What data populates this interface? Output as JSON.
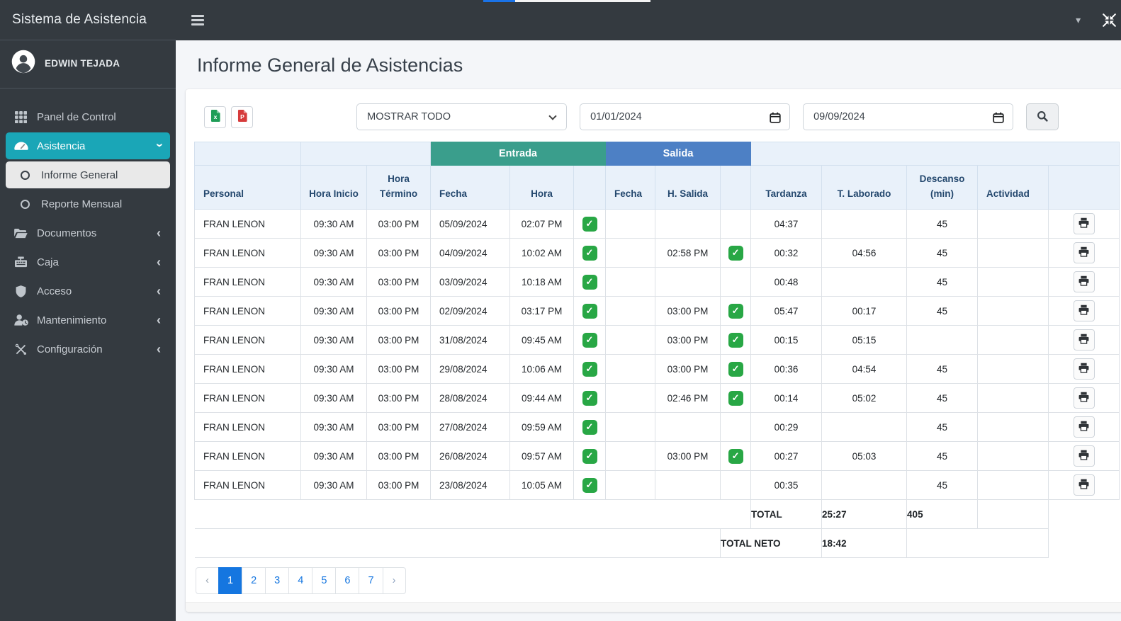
{
  "brand": "Sistema de Asistencia",
  "user": {
    "name": "EDWIN TEJADA"
  },
  "sidebar": {
    "items": [
      {
        "label": "Panel de Control",
        "icon": "grid-icon"
      },
      {
        "label": "Asistencia",
        "icon": "tachometer-icon",
        "state": "active",
        "chevron": "down"
      },
      {
        "label": "Informe General",
        "icon": "circle-icon",
        "state": "selected",
        "submenu": true
      },
      {
        "label": "Reporte Mensual",
        "icon": "circle-icon",
        "submenu": true
      },
      {
        "label": "Documentos",
        "icon": "folder-open-icon",
        "chevron": "left"
      },
      {
        "label": "Caja",
        "icon": "cash-register-icon",
        "chevron": "left"
      },
      {
        "label": "Acceso",
        "icon": "shield-icon",
        "chevron": "left"
      },
      {
        "label": "Mantenimiento",
        "icon": "user-clock-icon",
        "chevron": "left"
      },
      {
        "label": "Configuración",
        "icon": "tools-icon",
        "chevron": "left"
      }
    ]
  },
  "topbar": {
    "icons": [
      "hamburger-icon",
      "caret-down-icon",
      "compress-icon"
    ]
  },
  "page": {
    "title": "Informe General de Asistencias"
  },
  "filters": {
    "export_icons": [
      "file-excel-icon",
      "file-pdf-icon"
    ],
    "status_select": {
      "value": "MOSTRAR TODO"
    },
    "date_from": "01/01/2024",
    "date_to": "09/09/2024",
    "search_icon": "search-icon"
  },
  "table": {
    "groups": {
      "entrada": "Entrada",
      "salida": "Salida"
    },
    "columns": [
      "Personal",
      "Hora Inicio",
      "Hora Término",
      "Fecha",
      "Hora",
      "Fecha",
      "H. Salida",
      "Tardanza",
      "T. Laborado",
      "Descanso (min)",
      "Actividad"
    ],
    "rows": [
      {
        "personal": "FRAN LENON",
        "hora_inicio": "09:30 AM",
        "hora_termino": "03:00 PM",
        "fecha_entrada": "05/09/2024",
        "hora_entrada": "02:07 PM",
        "entrada_check": true,
        "fecha_salida": "",
        "hora_salida": "",
        "salida_check": false,
        "tardanza": "04:37",
        "t_laborado": "",
        "descanso": "45",
        "actividad": ""
      },
      {
        "personal": "FRAN LENON",
        "hora_inicio": "09:30 AM",
        "hora_termino": "03:00 PM",
        "fecha_entrada": "04/09/2024",
        "hora_entrada": "10:02 AM",
        "entrada_check": true,
        "fecha_salida": "",
        "hora_salida": "02:58 PM",
        "salida_check": true,
        "tardanza": "00:32",
        "t_laborado": "04:56",
        "descanso": "45",
        "actividad": ""
      },
      {
        "personal": "FRAN LENON",
        "hora_inicio": "09:30 AM",
        "hora_termino": "03:00 PM",
        "fecha_entrada": "03/09/2024",
        "hora_entrada": "10:18 AM",
        "entrada_check": true,
        "fecha_salida": "",
        "hora_salida": "",
        "salida_check": false,
        "tardanza": "00:48",
        "t_laborado": "",
        "descanso": "45",
        "actividad": ""
      },
      {
        "personal": "FRAN LENON",
        "hora_inicio": "09:30 AM",
        "hora_termino": "03:00 PM",
        "fecha_entrada": "02/09/2024",
        "hora_entrada": "03:17 PM",
        "entrada_check": true,
        "fecha_salida": "",
        "hora_salida": "03:00 PM",
        "salida_check": true,
        "tardanza": "05:47",
        "t_laborado": "00:17",
        "descanso": "45",
        "actividad": ""
      },
      {
        "personal": "FRAN LENON",
        "hora_inicio": "09:30 AM",
        "hora_termino": "03:00 PM",
        "fecha_entrada": "31/08/2024",
        "hora_entrada": "09:45 AM",
        "entrada_check": true,
        "fecha_salida": "",
        "hora_salida": "03:00 PM",
        "salida_check": true,
        "tardanza": "00:15",
        "t_laborado": "05:15",
        "descanso": "",
        "actividad": ""
      },
      {
        "personal": "FRAN LENON",
        "hora_inicio": "09:30 AM",
        "hora_termino": "03:00 PM",
        "fecha_entrada": "29/08/2024",
        "hora_entrada": "10:06 AM",
        "entrada_check": true,
        "fecha_salida": "",
        "hora_salida": "03:00 PM",
        "salida_check": true,
        "tardanza": "00:36",
        "t_laborado": "04:54",
        "descanso": "45",
        "actividad": ""
      },
      {
        "personal": "FRAN LENON",
        "hora_inicio": "09:30 AM",
        "hora_termino": "03:00 PM",
        "fecha_entrada": "28/08/2024",
        "hora_entrada": "09:44 AM",
        "entrada_check": true,
        "fecha_salida": "",
        "hora_salida": "02:46 PM",
        "salida_check": true,
        "tardanza": "00:14",
        "t_laborado": "05:02",
        "descanso": "45",
        "actividad": ""
      },
      {
        "personal": "FRAN LENON",
        "hora_inicio": "09:30 AM",
        "hora_termino": "03:00 PM",
        "fecha_entrada": "27/08/2024",
        "hora_entrada": "09:59 AM",
        "entrada_check": true,
        "fecha_salida": "",
        "hora_salida": "",
        "salida_check": false,
        "tardanza": "00:29",
        "t_laborado": "",
        "descanso": "45",
        "actividad": ""
      },
      {
        "personal": "FRAN LENON",
        "hora_inicio": "09:30 AM",
        "hora_termino": "03:00 PM",
        "fecha_entrada": "26/08/2024",
        "hora_entrada": "09:57 AM",
        "entrada_check": true,
        "fecha_salida": "",
        "hora_salida": "03:00 PM",
        "salida_check": true,
        "tardanza": "00:27",
        "t_laborado": "05:03",
        "descanso": "45",
        "actividad": ""
      },
      {
        "personal": "FRAN LENON",
        "hora_inicio": "09:30 AM",
        "hora_termino": "03:00 PM",
        "fecha_entrada": "23/08/2024",
        "hora_entrada": "10:05 AM",
        "entrada_check": true,
        "fecha_salida": "",
        "hora_salida": "",
        "salida_check": false,
        "tardanza": "00:35",
        "t_laborado": "",
        "descanso": "45",
        "actividad": ""
      }
    ],
    "total": {
      "label": "TOTAL",
      "t_laborado": "25:27",
      "descanso": "405"
    },
    "total_neto": {
      "label": "TOTAL NETO",
      "t_laborado": "18:42"
    }
  },
  "pagination": {
    "prev": "‹",
    "pages": [
      "1",
      "2",
      "3",
      "4",
      "5",
      "6",
      "7"
    ],
    "active": "1",
    "next": "›"
  },
  "colors": {
    "accent_teal": "#1aa6b7",
    "entrada_header": "#3a9e8c",
    "salida_header": "#4d80c5",
    "check_green": "#28a745",
    "active_page_blue": "#1576e0",
    "sidebar_dark": "#343a40"
  }
}
